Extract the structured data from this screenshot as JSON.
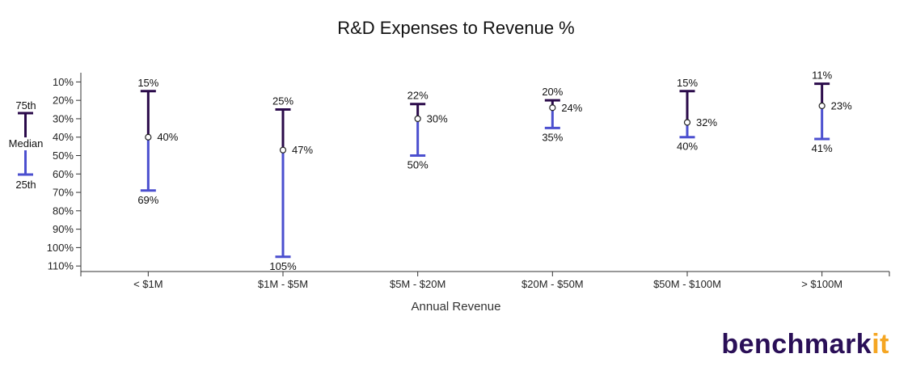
{
  "chart_data": {
    "type": "boxplot-range",
    "title": "R&D Expenses to Revenue %",
    "xlabel": "Annual Revenue",
    "ylabel": "",
    "y_axis_inverted": true,
    "ylim": [
      5,
      113
    ],
    "y_ticks": [
      10,
      20,
      30,
      40,
      50,
      60,
      70,
      80,
      90,
      100,
      110
    ],
    "y_tick_suffix": "%",
    "grid": false,
    "categories": [
      "< $1M",
      "$1M - $5M",
      "$5M - $20M",
      "$20M - $50M",
      "$50M - $100M",
      "> $100M"
    ],
    "p75": [
      15,
      25,
      22,
      20,
      15,
      11
    ],
    "median": [
      40,
      47,
      30,
      24,
      32,
      23
    ],
    "p25": [
      69,
      105,
      50,
      35,
      40,
      41
    ],
    "legend": {
      "position": "left",
      "top_label": "75th",
      "mid_label": "Median",
      "bottom_label": "25th"
    },
    "colors": {
      "upper": "#2a0a4a",
      "lower": "#4b4fcf",
      "median_fill": "#ffffff"
    }
  },
  "brand": {
    "name": "benchmarkit",
    "main": "benchmark",
    "accent": "it",
    "main_color": "#2a0f57",
    "accent_color": "#f5a623"
  }
}
